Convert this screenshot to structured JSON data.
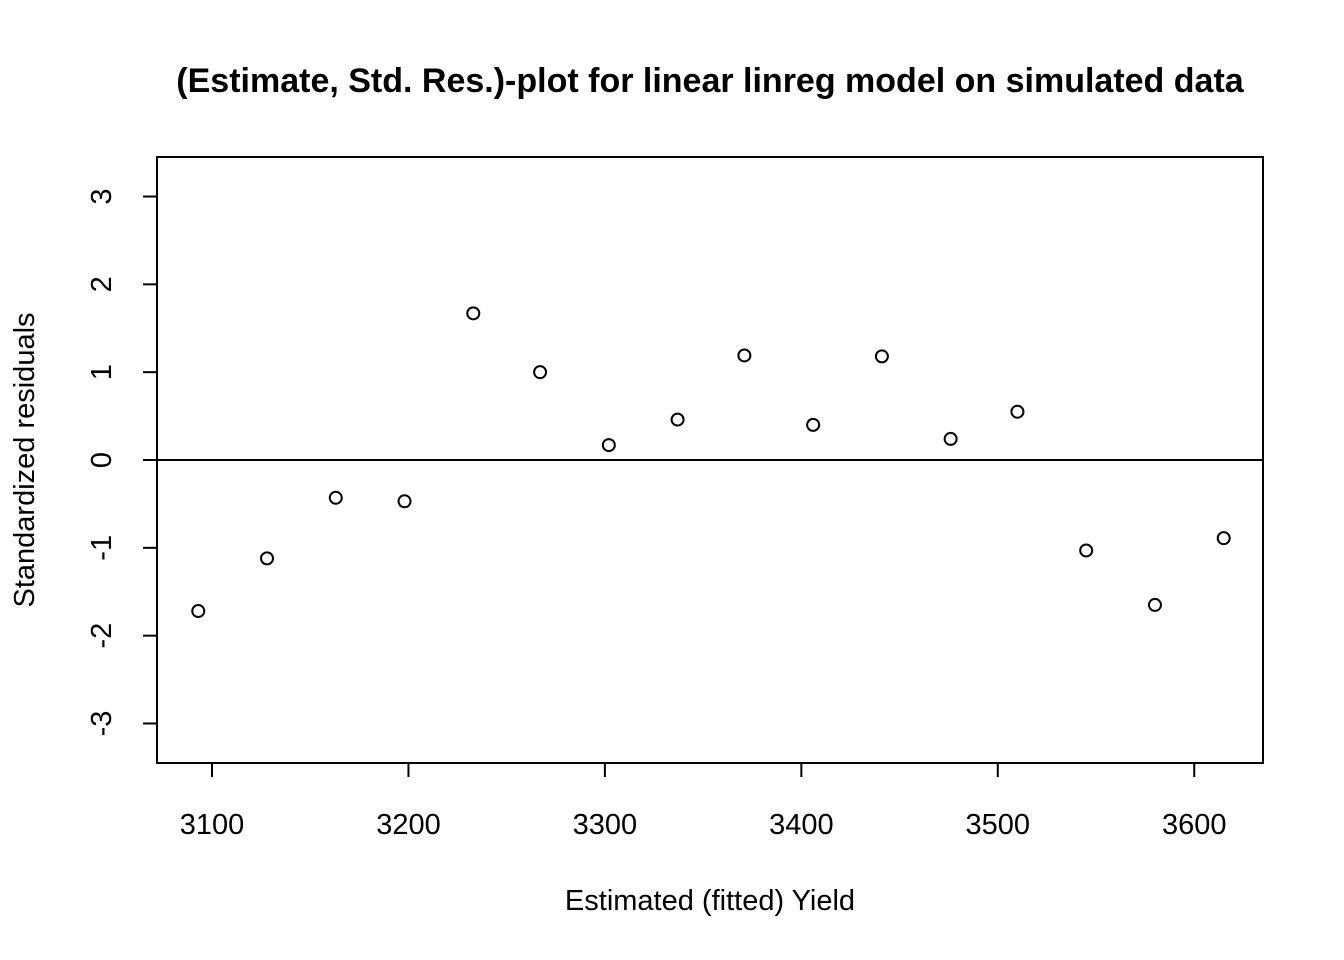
{
  "chart_data": {
    "type": "scatter",
    "title": "(Estimate, Std. Res.)-plot for linear linreg model on simulated data",
    "xlabel": "Estimated (fitted) Yield",
    "ylabel": "Standardized residuals",
    "xlim": [
      3072,
      3635
    ],
    "ylim": [
      -3.45,
      3.45
    ],
    "xticks": [
      3100,
      3200,
      3300,
      3400,
      3500,
      3600
    ],
    "yticks": [
      -3,
      -2,
      -1,
      0,
      1,
      2,
      3
    ],
    "reference_line": 0,
    "marker": "open-circle",
    "points": [
      {
        "x": 3093,
        "y": -1.72
      },
      {
        "x": 3128,
        "y": -1.12
      },
      {
        "x": 3163,
        "y": -0.43
      },
      {
        "x": 3198,
        "y": -0.47
      },
      {
        "x": 3233,
        "y": 1.67
      },
      {
        "x": 3267,
        "y": 1.0
      },
      {
        "x": 3302,
        "y": 0.17
      },
      {
        "x": 3337,
        "y": 0.46
      },
      {
        "x": 3371,
        "y": 1.19
      },
      {
        "x": 3406,
        "y": 0.4
      },
      {
        "x": 3441,
        "y": 1.18
      },
      {
        "x": 3476,
        "y": 0.24
      },
      {
        "x": 3510,
        "y": 0.55
      },
      {
        "x": 3545,
        "y": -1.03
      },
      {
        "x": 3580,
        "y": -1.65
      },
      {
        "x": 3615,
        "y": -0.89
      }
    ]
  }
}
